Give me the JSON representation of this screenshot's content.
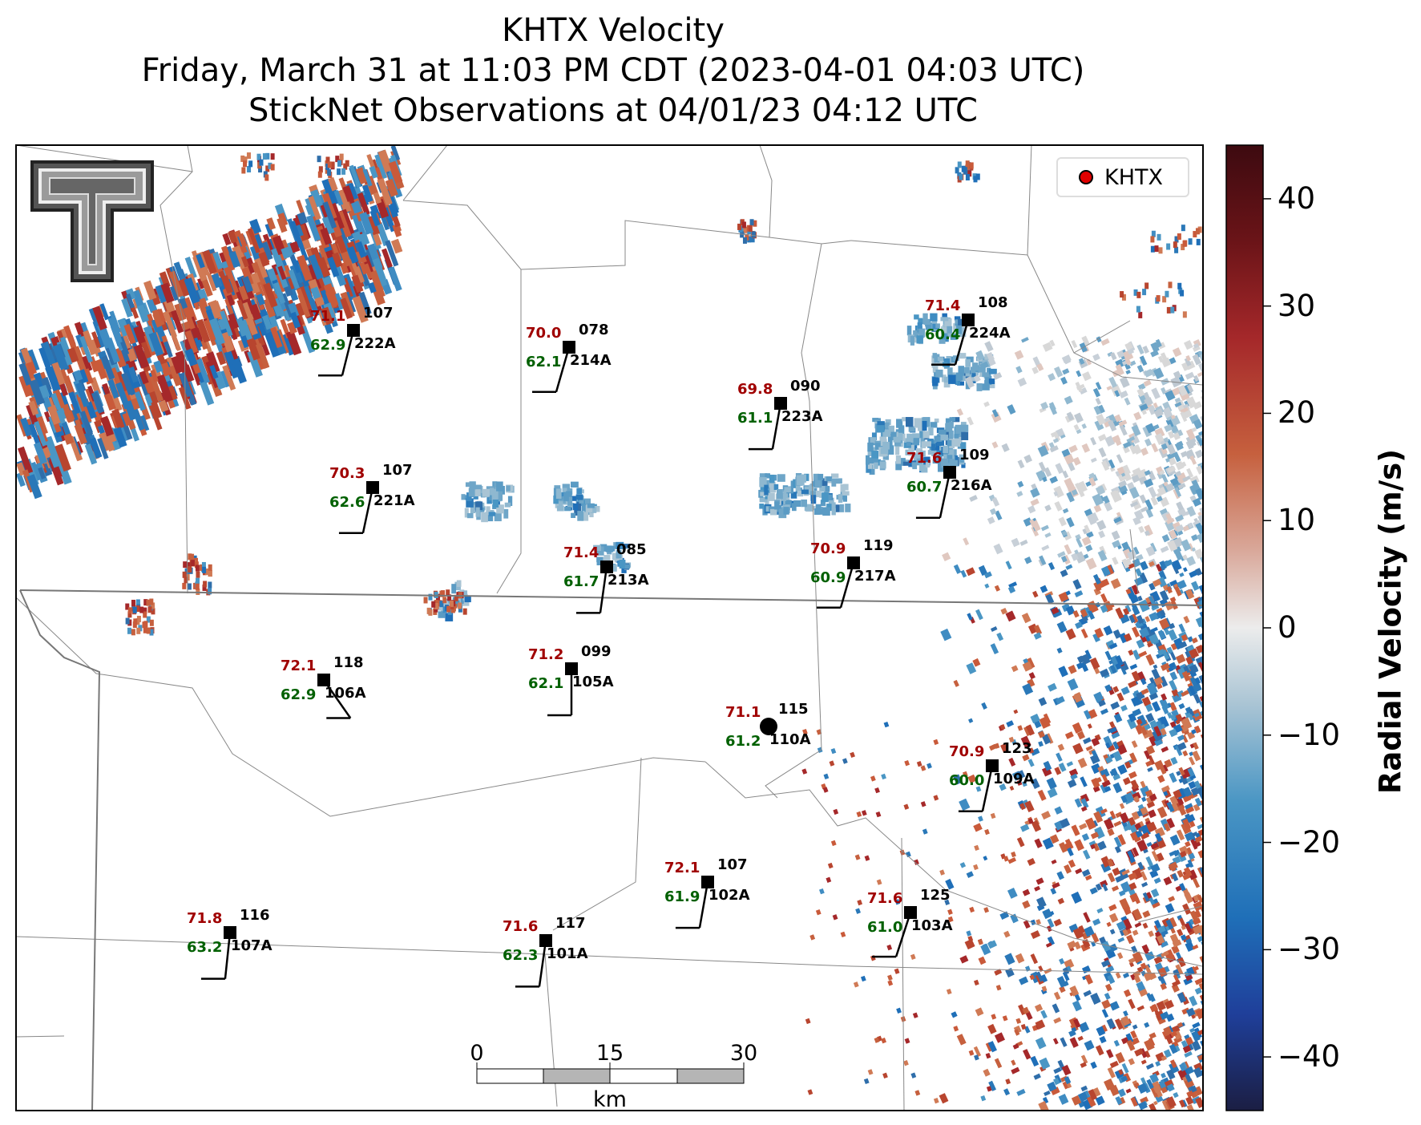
{
  "title": {
    "line1": "KHTX Velocity",
    "line2": "Friday, March 31 at 11:03 PM CDT (2023-04-01 04:03 UTC)",
    "line3": "StickNet Observations at 04/01/23 04:12 UTC"
  },
  "legend": {
    "label": "KHTX"
  },
  "colorbar": {
    "label": "Radial Velocity (m/s)",
    "min": -45,
    "max": 45,
    "ticks": [
      "40",
      "30",
      "20",
      "10",
      "0",
      "−10",
      "−20",
      "−30",
      "−40"
    ],
    "colors": [
      "#1b1e43",
      "#1f3f9a",
      "#1f6fb8",
      "#4a96c4",
      "#a9c4d4",
      "#ececec",
      "#d9a89a",
      "#c6603e",
      "#a5282a",
      "#6b1418",
      "#3d0a10"
    ]
  },
  "scalebar": {
    "ticks": [
      "0",
      "15",
      "30"
    ],
    "unit": "km"
  },
  "stations": [
    {
      "id": "222A",
      "temp": "71.1",
      "dew": "62.9",
      "num": "107"
    },
    {
      "id": "214A",
      "temp": "70.0",
      "dew": "62.1",
      "num": "078"
    },
    {
      "id": "224A",
      "temp": "71.4",
      "dew": "60.4",
      "num": "108"
    },
    {
      "id": "223A",
      "temp": "69.8",
      "dew": "61.1",
      "num": "090"
    },
    {
      "id": "221A",
      "temp": "70.3",
      "dew": "62.6",
      "num": "107"
    },
    {
      "id": "216A",
      "temp": "71.6",
      "dew": "60.7",
      "num": "109"
    },
    {
      "id": "213A",
      "temp": "71.4",
      "dew": "61.7",
      "num": "085"
    },
    {
      "id": "217A",
      "temp": "70.9",
      "dew": "60.9",
      "num": "119"
    },
    {
      "id": "106A",
      "temp": "72.1",
      "dew": "62.9",
      "num": "118"
    },
    {
      "id": "105A",
      "temp": "71.2",
      "dew": "62.1",
      "num": "099"
    },
    {
      "id": "110A",
      "temp": "71.1",
      "dew": "61.2",
      "num": "115"
    },
    {
      "id": "109A",
      "temp": "70.9",
      "dew": "60.0",
      "num": "123"
    },
    {
      "id": "102A",
      "temp": "72.1",
      "dew": "61.9",
      "num": "107"
    },
    {
      "id": "107A",
      "temp": "71.8",
      "dew": "63.2",
      "num": "116"
    },
    {
      "id": "101A",
      "temp": "71.6",
      "dew": "62.3",
      "num": "117"
    },
    {
      "id": "103A",
      "temp": "71.6",
      "dew": "61.0",
      "num": "125"
    }
  ]
}
